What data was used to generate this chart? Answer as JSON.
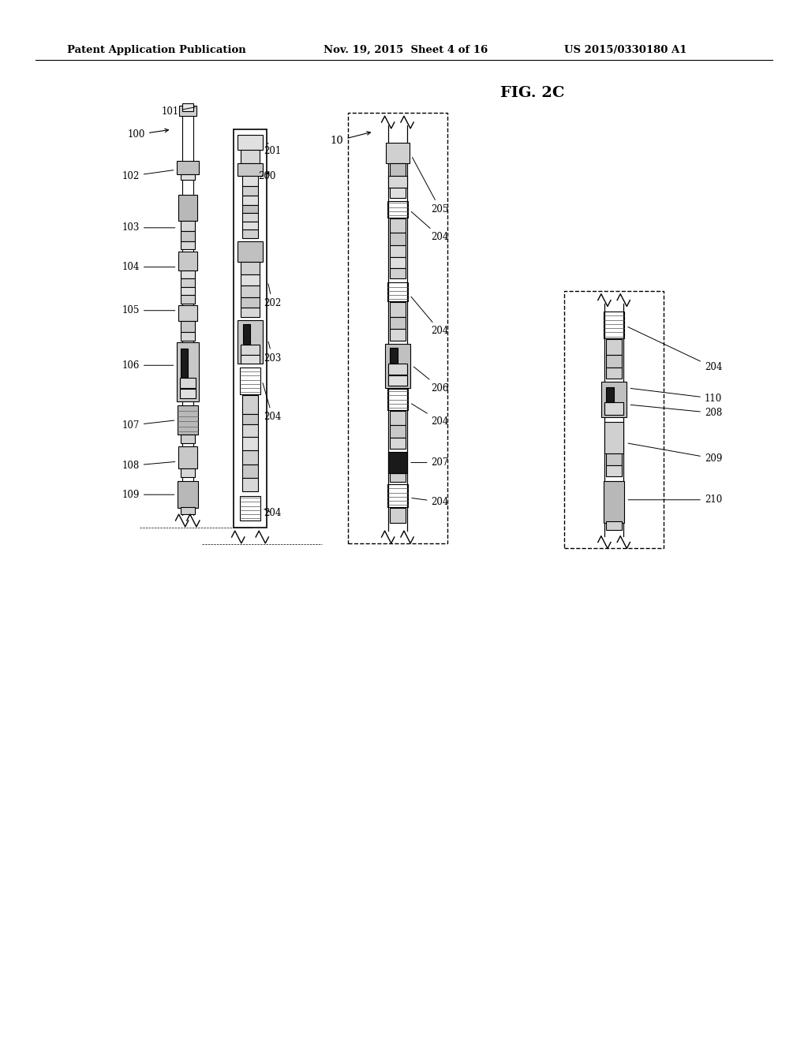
{
  "title_left": "Patent Application Publication",
  "title_mid": "Nov. 19, 2015  Sheet 4 of 16",
  "title_right": "US 2015/0330180 A1",
  "fig_label": "FIG. 2C",
  "background_color": "#ffffff",
  "text_color": "#000000",
  "line_color": "#000000"
}
